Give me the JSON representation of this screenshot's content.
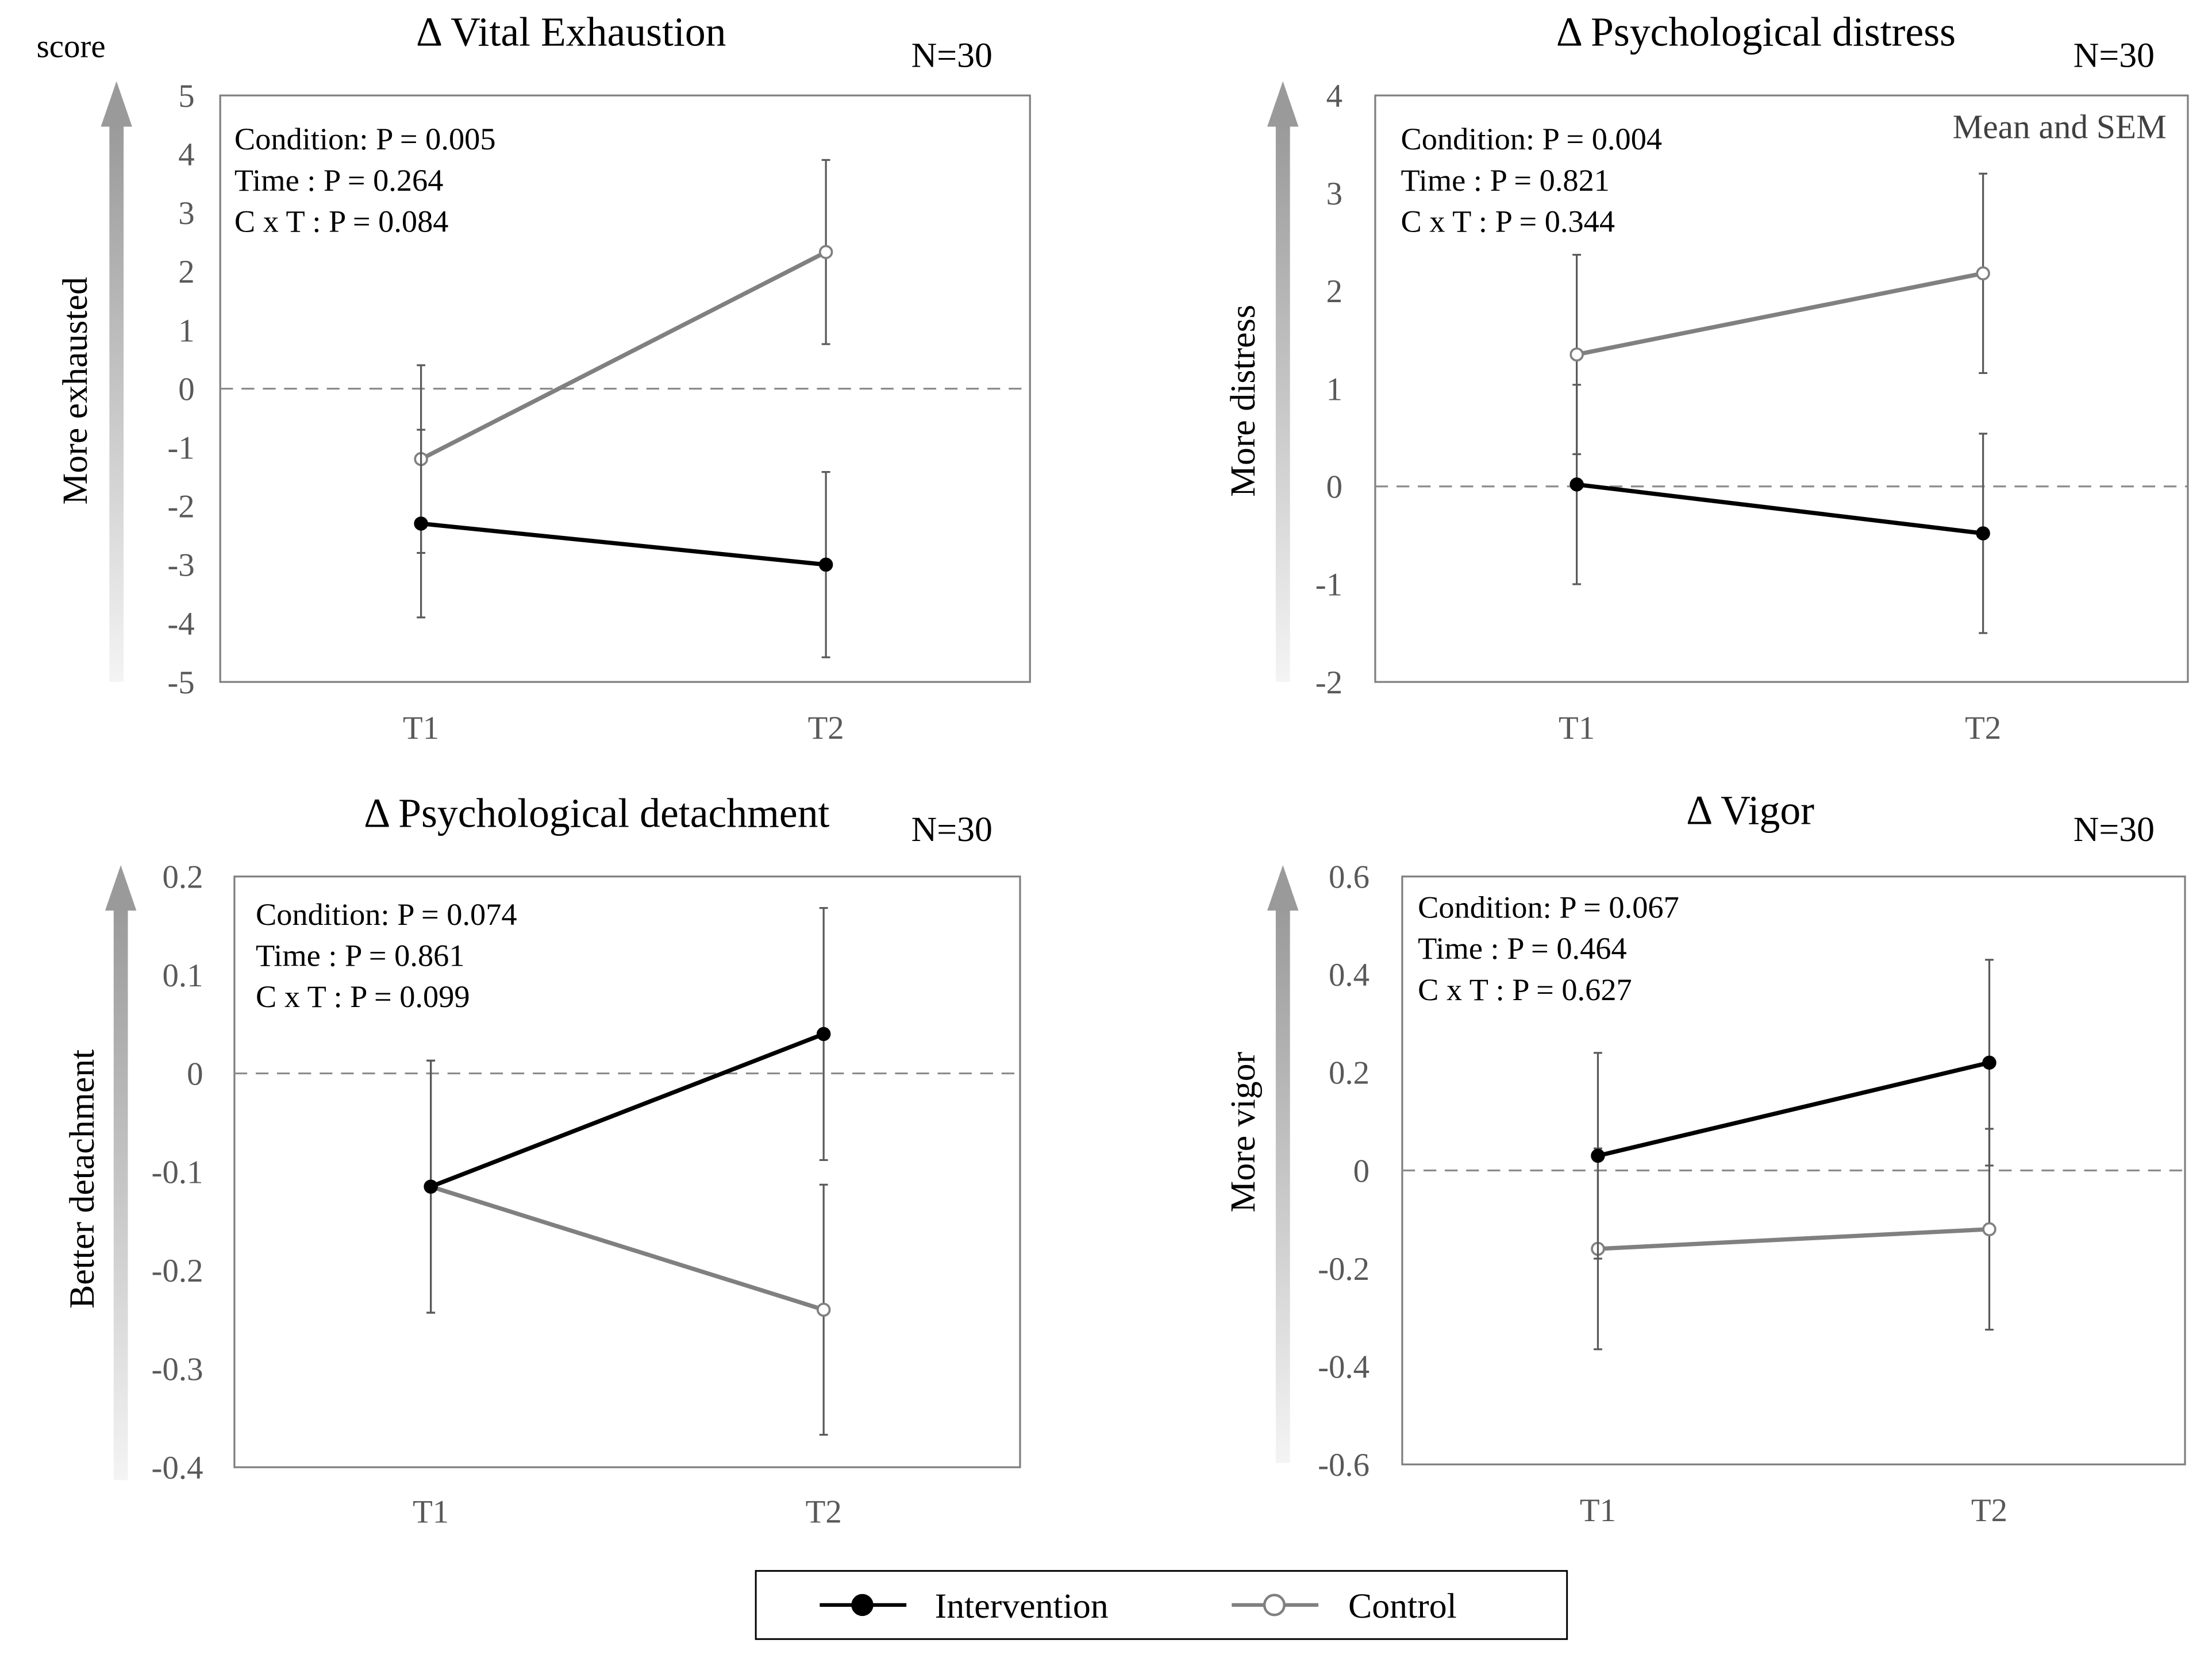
{
  "legend": {
    "items": [
      {
        "label": "Intervention",
        "color": "#000000",
        "marker": "filled-circle"
      },
      {
        "label": "Control",
        "color": "#808080",
        "marker": "open-circle"
      }
    ]
  },
  "chart_data": [
    {
      "type": "line",
      "title": "Δ Vital Exhaustion",
      "corner_label": "score",
      "n_label": "N=30",
      "ylabel": "More exhausted",
      "ylim": [
        -5,
        5
      ],
      "yticks": [
        5,
        4,
        3,
        2,
        1,
        0,
        -1,
        -2,
        -3,
        -4,
        -5
      ],
      "ytick_labels": [
        "5",
        "4",
        "3",
        "2",
        "1",
        "0",
        "-1",
        "-2",
        "-3",
        "-4",
        "-5"
      ],
      "categories": [
        "T1",
        "T2"
      ],
      "stats": [
        "Condition: P = 0.005",
        "Time : P = 0.264",
        "C x T : P = 0.084"
      ],
      "note": "",
      "series": [
        {
          "name": "Intervention",
          "values": [
            -2.3,
            -3.0
          ],
          "sem": [
            1.6,
            1.58
          ]
        },
        {
          "name": "Control",
          "values": [
            -1.2,
            2.33
          ],
          "sem": [
            1.6,
            1.57
          ]
        }
      ]
    },
    {
      "type": "line",
      "title": "Δ Psychological  distress",
      "corner_label": "",
      "n_label": "N=30",
      "ylabel": "More distress",
      "ylim": [
        -2,
        4
      ],
      "yticks": [
        4,
        3,
        2,
        1,
        0,
        -1,
        -2
      ],
      "ytick_labels": [
        "4",
        "3",
        "2",
        "1",
        "0",
        "-1",
        "-2"
      ],
      "categories": [
        "T1",
        "T2"
      ],
      "stats": [
        "Condition: P = 0.004",
        "Time : P = 0.821",
        "C x T : P = 0.344"
      ],
      "note": "Mean and SEM",
      "series": [
        {
          "name": "Intervention",
          "values": [
            0.02,
            -0.48
          ],
          "sem": [
            1.02,
            1.02
          ]
        },
        {
          "name": "Control",
          "values": [
            1.35,
            2.18
          ],
          "sem": [
            1.02,
            1.02
          ]
        }
      ]
    },
    {
      "type": "line",
      "title": "Δ Psychological  detachment",
      "corner_label": "",
      "n_label": "N=30",
      "ylabel": "Better detachment",
      "ylim": [
        -0.4,
        0.2
      ],
      "yticks": [
        0.2,
        0.1,
        0,
        -0.1,
        -0.2,
        -0.3,
        -0.4
      ],
      "ytick_labels": [
        "0.2",
        "0.1",
        "0",
        "-0.1",
        "-0.2",
        "-0.3",
        "-0.4"
      ],
      "categories": [
        "T1",
        "T2"
      ],
      "stats": [
        "Condition: P = 0.074",
        "Time : P = 0.861",
        "C x T : P = 0.099"
      ],
      "note": "",
      "series": [
        {
          "name": "Intervention",
          "values": [
            -0.115,
            0.04
          ],
          "sem": [
            0.128,
            0.128
          ]
        },
        {
          "name": "Control",
          "values": [
            -0.115,
            -0.24
          ],
          "sem": [
            0.128,
            0.127
          ]
        }
      ]
    },
    {
      "type": "line",
      "title": "Δ Vigor",
      "corner_label": "",
      "n_label": "N=30",
      "ylabel": "More vigor",
      "ylim": [
        -0.6,
        0.6
      ],
      "yticks": [
        0.6,
        0.4,
        0.2,
        0,
        -0.2,
        -0.4,
        -0.6
      ],
      "ytick_labels": [
        "0.6",
        "0.4",
        "0.2",
        "0",
        "-0.2",
        "-0.4",
        "-0.6"
      ],
      "categories": [
        "T1",
        "T2"
      ],
      "stats": [
        "Condition: P = 0.067",
        "Time : P = 0.464",
        "C x T : P = 0.627"
      ],
      "note": "",
      "series": [
        {
          "name": "Intervention",
          "values": [
            0.03,
            0.22
          ],
          "sem": [
            0.21,
            0.21
          ]
        },
        {
          "name": "Control",
          "values": [
            -0.16,
            -0.12
          ],
          "sem": [
            0.205,
            0.205
          ]
        }
      ]
    }
  ]
}
